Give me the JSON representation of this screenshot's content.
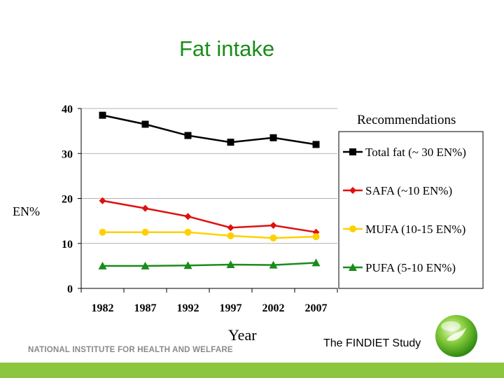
{
  "slide": {
    "title": "Fat intake",
    "institute": "NATIONAL INSTITUTE FOR HEALTH AND WELFARE",
    "study": "The FINDIET Study",
    "footer_color": "#8cc63f"
  },
  "chart_data": {
    "type": "line",
    "title": "",
    "xlabel": "Year",
    "ylabel": "EN%",
    "x": [
      "1982",
      "1987",
      "1992",
      "1997",
      "2002",
      "2007"
    ],
    "ylim": [
      0,
      40
    ],
    "yticks": [
      0,
      10,
      20,
      30,
      40
    ],
    "grid": true,
    "legend_title": "Recommendations",
    "legend_position": "right",
    "series": [
      {
        "name": "Total fat (~ 30 EN%)",
        "values": [
          38.5,
          36.5,
          34,
          32.5,
          33.5,
          32
        ],
        "color": "#000000",
        "marker": "square"
      },
      {
        "name": "SAFA (~10 EN%)",
        "values": [
          19.5,
          17.8,
          16,
          13.5,
          14,
          12.5
        ],
        "color": "#e01010",
        "marker": "diamond"
      },
      {
        "name": "MUFA (10-15 EN%)",
        "values": [
          12.5,
          12.5,
          12.5,
          11.7,
          11.2,
          11.5
        ],
        "color": "#ffd000",
        "marker": "circle"
      },
      {
        "name": "PUFA (5-10 EN%)",
        "values": [
          5,
          5,
          5.1,
          5.3,
          5.2,
          5.7
        ],
        "color": "#1a8c1a",
        "marker": "triangle"
      }
    ]
  }
}
